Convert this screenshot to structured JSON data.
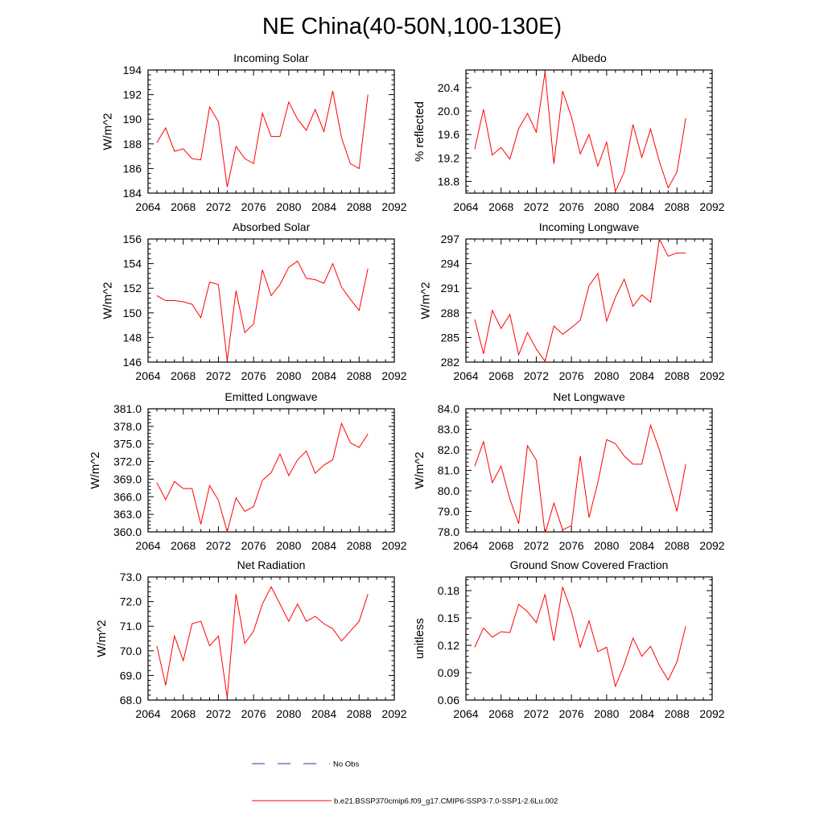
{
  "figure": {
    "title": "NE China(40-50N,100-130E)",
    "line_color": "#ff0000",
    "obs_color": "#3333aa"
  },
  "legend": {
    "items": [
      {
        "label": "No Obs",
        "style": "dashed",
        "color": "#3333aa"
      },
      {
        "label": "b.e21.BSSP370cmip6.f09_g17.CMIP6-SSP3-7.0-SSP1-2.6Lu.002",
        "style": "solid",
        "color": "#ff0000"
      }
    ]
  },
  "chart_data": [
    {
      "type": "line",
      "title": "Incoming Solar",
      "xlabel": "",
      "ylabel": "W/m^2",
      "xlim": [
        2064,
        2092
      ],
      "ylim": [
        184,
        194
      ],
      "xticks": [
        "2064",
        "2068",
        "2072",
        "2076",
        "2080",
        "2084",
        "2088",
        "2092"
      ],
      "yticks": [
        "184",
        "186",
        "188",
        "190",
        "192",
        "194"
      ],
      "x": [
        2065,
        2066,
        2067,
        2068,
        2069,
        2070,
        2071,
        2072,
        2073,
        2074,
        2075,
        2076,
        2077,
        2078,
        2079,
        2080,
        2081,
        2082,
        2083,
        2084,
        2085,
        2086,
        2087,
        2088,
        2089
      ],
      "series": [
        {
          "values": [
            188.1,
            189.3,
            187.4,
            187.6,
            186.8,
            186.7,
            191.0,
            189.8,
            184.5,
            187.8,
            186.8,
            186.4,
            190.5,
            188.6,
            188.6,
            191.4,
            190.0,
            189.1,
            190.8,
            189.0,
            192.3,
            188.5,
            186.4,
            186.0,
            192.0
          ]
        }
      ]
    },
    {
      "type": "line",
      "title": "Albedo",
      "xlabel": "",
      "ylabel": "% reflected",
      "xlim": [
        2064,
        2092
      ],
      "ylim": [
        18.6,
        20.7
      ],
      "xticks": [
        "2064",
        "2068",
        "2072",
        "2076",
        "2080",
        "2084",
        "2088",
        "2092"
      ],
      "yticks": [
        "18.8",
        "19.2",
        "19.6",
        "20.0",
        "20.4"
      ],
      "x": [
        2065,
        2066,
        2067,
        2068,
        2069,
        2070,
        2071,
        2072,
        2073,
        2074,
        2075,
        2076,
        2077,
        2078,
        2079,
        2080,
        2081,
        2082,
        2083,
        2084,
        2085,
        2086,
        2087,
        2088,
        2089
      ],
      "series": [
        {
          "values": [
            19.35,
            20.03,
            19.25,
            19.38,
            19.18,
            19.7,
            19.96,
            19.64,
            20.67,
            19.1,
            20.34,
            19.9,
            19.27,
            19.6,
            19.06,
            19.47,
            18.63,
            18.96,
            19.77,
            19.21,
            19.69,
            19.14,
            18.69,
            18.96,
            19.88
          ]
        }
      ]
    },
    {
      "type": "line",
      "title": "Absorbed Solar",
      "xlabel": "",
      "ylabel": "W/m^2",
      "xlim": [
        2064,
        2092
      ],
      "ylim": [
        146,
        156
      ],
      "xticks": [
        "2064",
        "2068",
        "2072",
        "2076",
        "2080",
        "2084",
        "2088",
        "2092"
      ],
      "yticks": [
        "146",
        "148",
        "150",
        "152",
        "154",
        "156"
      ],
      "x": [
        2065,
        2066,
        2067,
        2068,
        2069,
        2070,
        2071,
        2072,
        2073,
        2074,
        2075,
        2076,
        2077,
        2078,
        2079,
        2080,
        2081,
        2082,
        2083,
        2084,
        2085,
        2086,
        2087,
        2088,
        2089
      ],
      "series": [
        {
          "values": [
            151.4,
            151.0,
            151.0,
            150.9,
            150.7,
            149.6,
            152.5,
            152.3,
            146.1,
            151.8,
            148.4,
            149.1,
            153.5,
            151.4,
            152.3,
            153.7,
            154.2,
            152.8,
            152.7,
            152.4,
            154.0,
            152.1,
            151.1,
            150.2,
            153.6
          ]
        }
      ]
    },
    {
      "type": "line",
      "title": "Incoming Longwave",
      "xlabel": "",
      "ylabel": "W/m^2",
      "xlim": [
        2064,
        2092
      ],
      "ylim": [
        282,
        297
      ],
      "xticks": [
        "2064",
        "2068",
        "2072",
        "2076",
        "2080",
        "2084",
        "2088",
        "2092"
      ],
      "yticks": [
        "282",
        "285",
        "288",
        "291",
        "294",
        "297"
      ],
      "x": [
        2065,
        2066,
        2067,
        2068,
        2069,
        2070,
        2071,
        2072,
        2073,
        2074,
        2075,
        2076,
        2077,
        2078,
        2079,
        2080,
        2081,
        2082,
        2083,
        2084,
        2085,
        2086,
        2087,
        2088,
        2089
      ],
      "series": [
        {
          "values": [
            287.2,
            283.0,
            288.3,
            286.1,
            287.8,
            282.9,
            285.6,
            283.6,
            282.1,
            286.4,
            285.4,
            286.2,
            287.1,
            291.3,
            292.8,
            287.0,
            289.9,
            292.1,
            288.8,
            290.2,
            289.3,
            297.0,
            294.9,
            295.3,
            295.3
          ]
        }
      ]
    },
    {
      "type": "line",
      "title": "Emitted Longwave",
      "xlabel": "",
      "ylabel": "W/m^2",
      "xlim": [
        2064,
        2092
      ],
      "ylim": [
        360,
        381
      ],
      "xticks": [
        "2064",
        "2068",
        "2072",
        "2076",
        "2080",
        "2084",
        "2088",
        "2092"
      ],
      "yticks": [
        "360.0",
        "363.0",
        "366.0",
        "369.0",
        "372.0",
        "375.0",
        "378.0",
        "381.0"
      ],
      "x": [
        2065,
        2066,
        2067,
        2068,
        2069,
        2070,
        2071,
        2072,
        2073,
        2074,
        2075,
        2076,
        2077,
        2078,
        2079,
        2080,
        2081,
        2082,
        2083,
        2084,
        2085,
        2086,
        2087,
        2088,
        2089
      ],
      "series": [
        {
          "values": [
            368.4,
            365.5,
            368.6,
            367.4,
            367.4,
            361.3,
            367.9,
            365.4,
            360.0,
            365.8,
            363.5,
            364.3,
            368.8,
            370.1,
            373.3,
            369.6,
            372.3,
            373.8,
            370.0,
            371.4,
            372.3,
            378.5,
            375.2,
            374.4,
            376.7
          ]
        }
      ]
    },
    {
      "type": "line",
      "title": "Net Longwave",
      "xlabel": "",
      "ylabel": "W/m^2",
      "xlim": [
        2064,
        2092
      ],
      "ylim": [
        78,
        84
      ],
      "xticks": [
        "2064",
        "2068",
        "2072",
        "2076",
        "2080",
        "2084",
        "2088",
        "2092"
      ],
      "yticks": [
        "78.0",
        "79.0",
        "80.0",
        "81.0",
        "82.0",
        "83.0",
        "84.0"
      ],
      "x": [
        2065,
        2066,
        2067,
        2068,
        2069,
        2070,
        2071,
        2072,
        2073,
        2074,
        2075,
        2076,
        2077,
        2078,
        2079,
        2080,
        2081,
        2082,
        2083,
        2084,
        2085,
        2086,
        2087,
        2088,
        2089
      ],
      "series": [
        {
          "values": [
            81.2,
            82.4,
            80.4,
            81.2,
            79.6,
            78.4,
            82.2,
            81.5,
            77.9,
            79.4,
            78.1,
            78.3,
            81.7,
            78.7,
            80.4,
            82.5,
            82.3,
            81.7,
            81.3,
            81.3,
            83.2,
            82.0,
            80.5,
            79.0,
            81.3
          ]
        }
      ]
    },
    {
      "type": "line",
      "title": "Net Radiation",
      "xlabel": "",
      "ylabel": "W/m^2",
      "xlim": [
        2064,
        2092
      ],
      "ylim": [
        68,
        73
      ],
      "xticks": [
        "2064",
        "2068",
        "2072",
        "2076",
        "2080",
        "2084",
        "2088",
        "2092"
      ],
      "yticks": [
        "68.0",
        "69.0",
        "70.0",
        "71.0",
        "72.0",
        "73.0"
      ],
      "x": [
        2065,
        2066,
        2067,
        2068,
        2069,
        2070,
        2071,
        2072,
        2073,
        2074,
        2075,
        2076,
        2077,
        2078,
        2079,
        2080,
        2081,
        2082,
        2083,
        2084,
        2085,
        2086,
        2087,
        2088,
        2089
      ],
      "series": [
        {
          "values": [
            70.2,
            68.6,
            70.6,
            69.6,
            71.1,
            71.2,
            70.2,
            70.6,
            68.1,
            72.3,
            70.3,
            70.8,
            71.9,
            72.6,
            71.9,
            71.2,
            71.9,
            71.2,
            71.4,
            71.1,
            70.9,
            70.4,
            70.8,
            71.2,
            72.3
          ]
        }
      ]
    },
    {
      "type": "line",
      "title": "Ground Snow Covered Fraction",
      "xlabel": "",
      "ylabel": "unitless",
      "xlim": [
        2064,
        2092
      ],
      "ylim": [
        0.06,
        0.195
      ],
      "xticks": [
        "2064",
        "2068",
        "2072",
        "2076",
        "2080",
        "2084",
        "2088",
        "2092"
      ],
      "yticks": [
        "0.06",
        "0.09",
        "0.12",
        "0.15",
        "0.18"
      ],
      "x": [
        2065,
        2066,
        2067,
        2068,
        2069,
        2070,
        2071,
        2072,
        2073,
        2074,
        2075,
        2076,
        2077,
        2078,
        2079,
        2080,
        2081,
        2082,
        2083,
        2084,
        2085,
        2086,
        2087,
        2088,
        2089
      ],
      "series": [
        {
          "values": [
            0.118,
            0.139,
            0.129,
            0.135,
            0.134,
            0.165,
            0.157,
            0.145,
            0.176,
            0.125,
            0.184,
            0.157,
            0.118,
            0.147,
            0.113,
            0.118,
            0.075,
            0.099,
            0.128,
            0.108,
            0.119,
            0.098,
            0.082,
            0.102,
            0.141
          ]
        }
      ]
    }
  ]
}
